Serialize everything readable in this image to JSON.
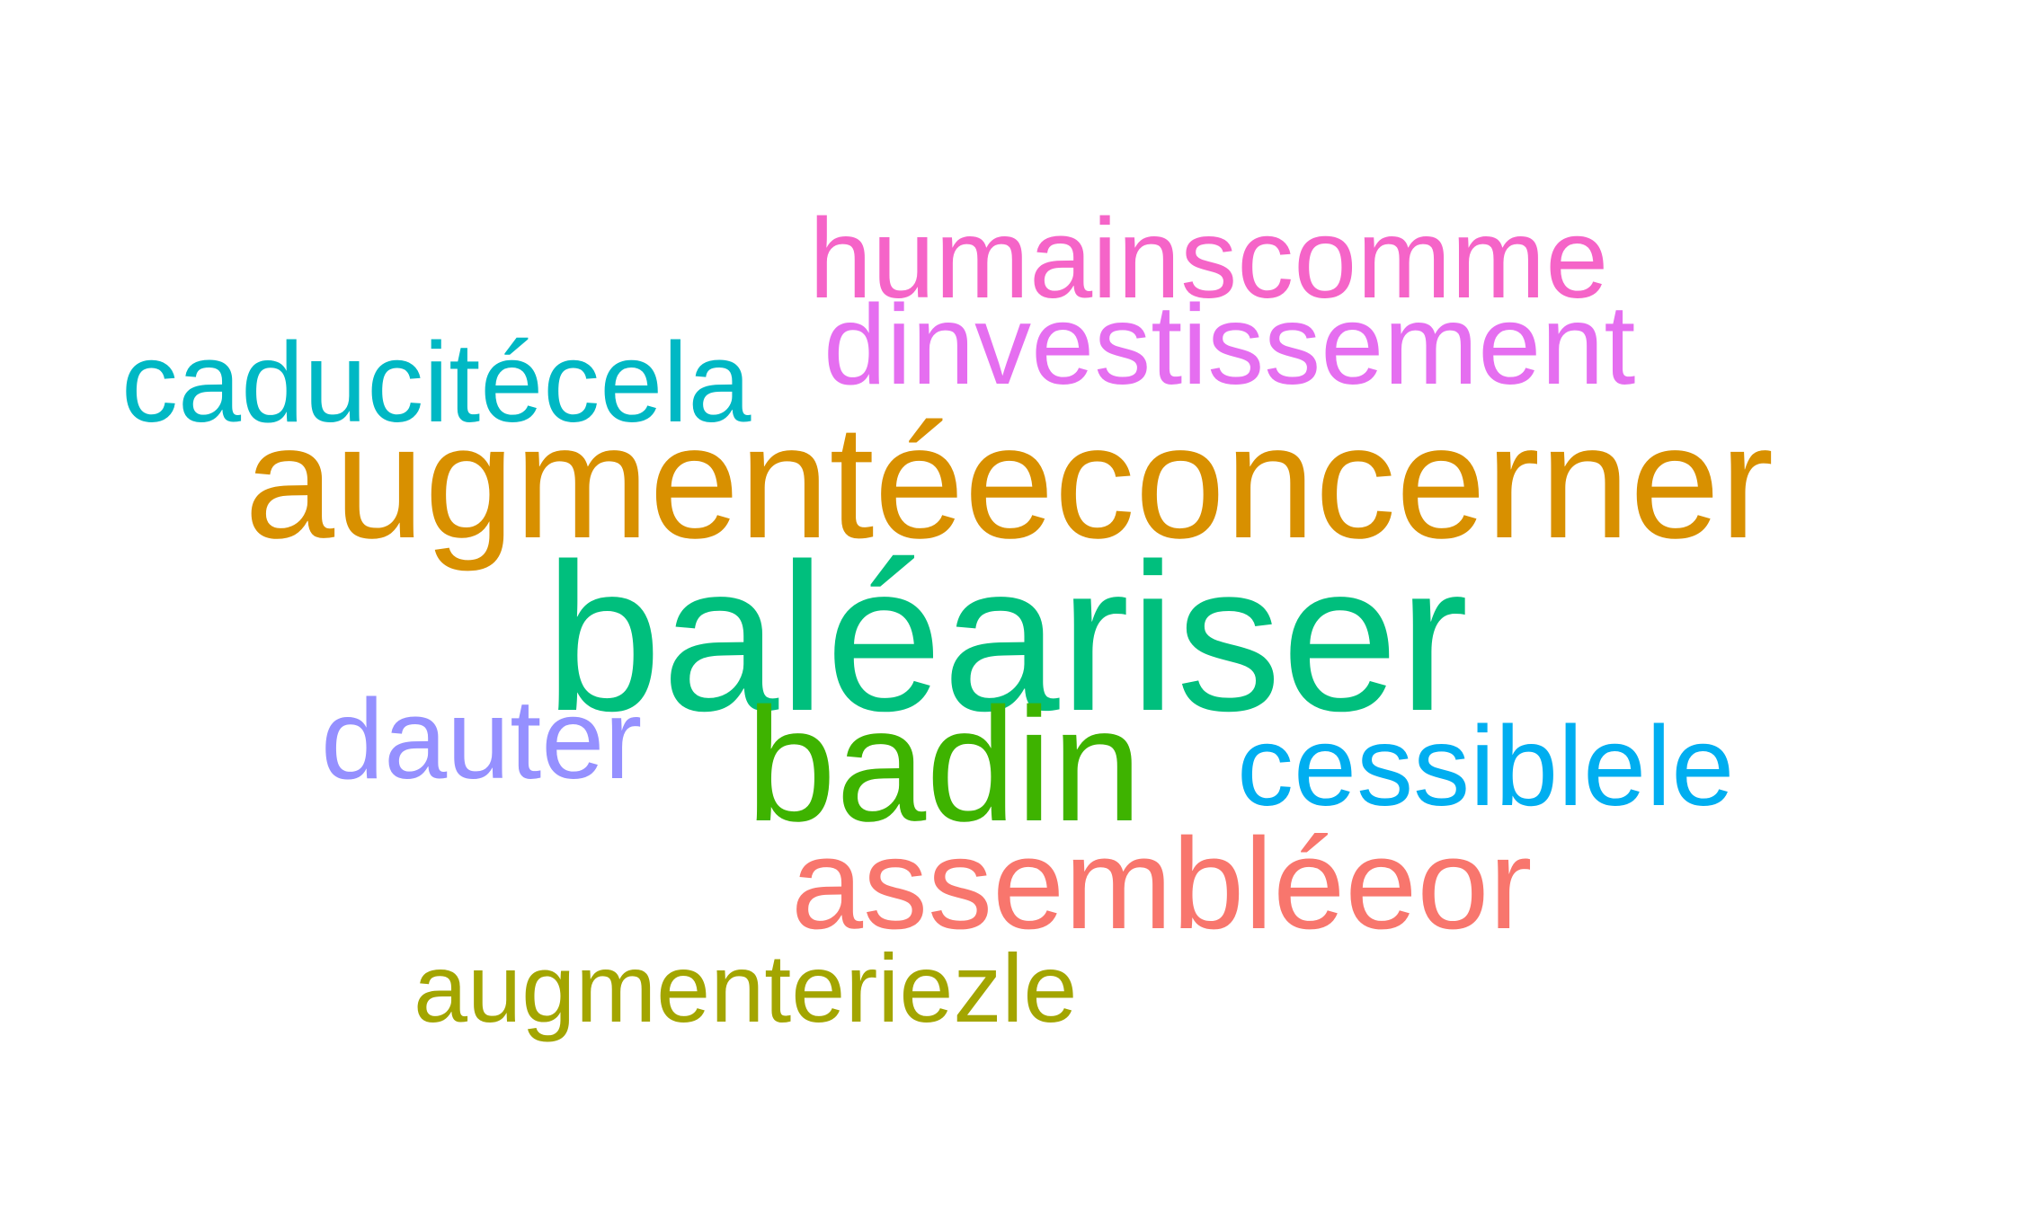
{
  "words": [
    {
      "text": "humainscomme",
      "color": "#f564c8"
    },
    {
      "text": "dinvestissement",
      "color": "#e56ef0"
    },
    {
      "text": "caducitécela",
      "color": "#00b8c4"
    },
    {
      "text": "augmentéeconcerner",
      "color": "#d89000"
    },
    {
      "text": "baléariser",
      "color": "#00bf7d"
    },
    {
      "text": "dauter",
      "color": "#9590ff"
    },
    {
      "text": "badin",
      "color": "#3eb300"
    },
    {
      "text": "cessiblele",
      "color": "#00aef0"
    },
    {
      "text": "assembléeor",
      "color": "#f8766d"
    },
    {
      "text": "augmenteriezle",
      "color": "#a3a500"
    }
  ]
}
